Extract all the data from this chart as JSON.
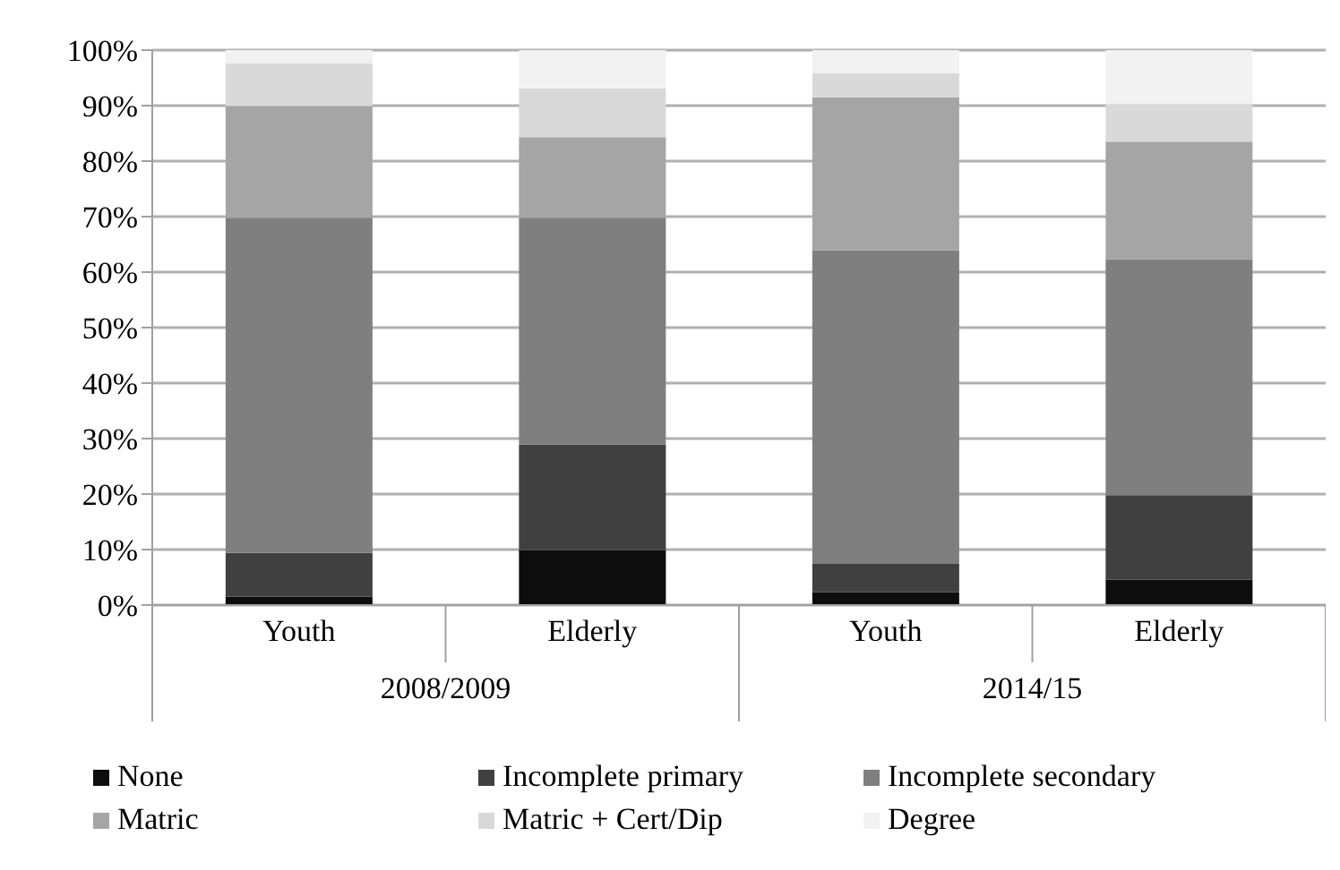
{
  "chart_data": {
    "type": "bar",
    "stacked": true,
    "categories": [
      "Youth",
      "Elderly",
      "Youth",
      "Elderly"
    ],
    "annotations": [
      "2008/2009",
      "2014/15"
    ],
    "series": [
      {
        "name": "None",
        "color": "#0d0d0d",
        "values": [
          1.5,
          9.9,
          2.3,
          4.6
        ]
      },
      {
        "name": "Incomplete primary",
        "color": "#404040",
        "values": [
          7.9,
          19.0,
          5.1,
          15.2
        ]
      },
      {
        "name": "Incomplete secondary",
        "color": "#7f7f7f",
        "values": [
          60.4,
          40.9,
          56.5,
          42.5
        ]
      },
      {
        "name": "Matric",
        "color": "#a5a5a5",
        "values": [
          20.1,
          14.5,
          27.6,
          21.2
        ]
      },
      {
        "name": "Matric + Cert/Dip",
        "color": "#d9d9d9",
        "values": [
          7.7,
          8.8,
          4.4,
          6.8
        ]
      },
      {
        "name": "Degree",
        "color": "#f2f2f2",
        "values": [
          2.4,
          6.9,
          4.1,
          9.7
        ]
      }
    ],
    "ylim": [
      0,
      100
    ],
    "yticks": [
      {
        "value": 0,
        "label": "0%"
      },
      {
        "value": 10,
        "label": "10%"
      },
      {
        "value": 20,
        "label": "20%"
      },
      {
        "value": 30,
        "label": "30%"
      },
      {
        "value": 40,
        "label": "40%"
      },
      {
        "value": 50,
        "label": "50%"
      },
      {
        "value": 60,
        "label": "60%"
      },
      {
        "value": 70,
        "label": "70%"
      },
      {
        "value": 80,
        "label": "80%"
      },
      {
        "value": 90,
        "label": "90%"
      },
      {
        "value": 100,
        "label": "100%"
      }
    ],
    "grid": "y",
    "legend": "bottom"
  }
}
